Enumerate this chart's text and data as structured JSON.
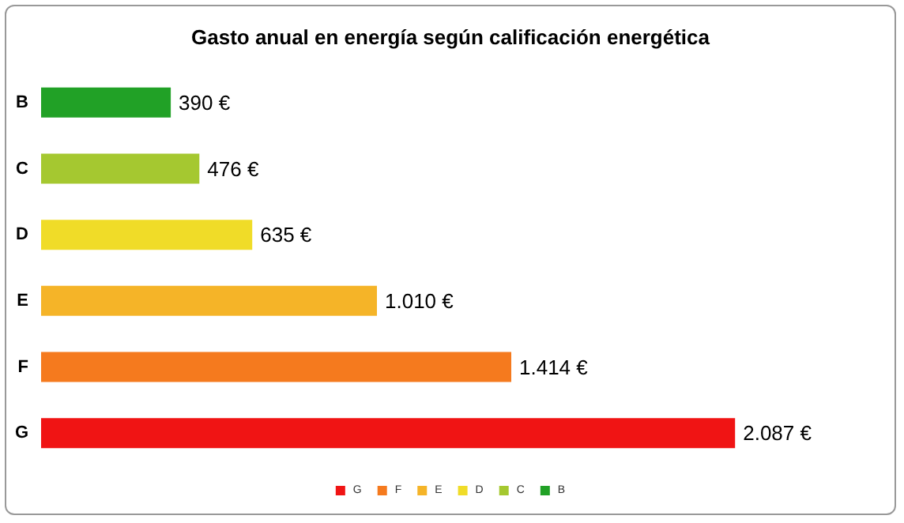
{
  "chart_data": {
    "type": "bar",
    "orientation": "horizontal",
    "stacked": true,
    "title": "Gasto anual en energía según calificación energética",
    "categories": [
      "B",
      "C",
      "D",
      "E",
      "F",
      "G"
    ],
    "legend": "bottom",
    "series": [
      {
        "name": "G",
        "color": "#f01414",
        "values": [
          null,
          null,
          null,
          null,
          null,
          2087
        ],
        "value_labels": [
          null,
          null,
          null,
          null,
          null,
          "2.087 €"
        ]
      },
      {
        "name": "F",
        "color": "#f57a1e",
        "values": [
          null,
          null,
          null,
          null,
          1414,
          null
        ],
        "value_labels": [
          null,
          null,
          null,
          null,
          "1.414 €",
          null
        ]
      },
      {
        "name": "E",
        "color": "#f5b428",
        "values": [
          null,
          null,
          null,
          1010,
          null,
          null
        ],
        "value_labels": [
          null,
          null,
          null,
          "1.010 €",
          null,
          null
        ]
      },
      {
        "name": "D",
        "color": "#f0dc28",
        "values": [
          null,
          null,
          635,
          null,
          null,
          null
        ],
        "value_labels": [
          null,
          null,
          "635 €",
          null,
          null,
          null
        ]
      },
      {
        "name": "C",
        "color": "#a5c830",
        "values": [
          null,
          476,
          null,
          null,
          null,
          null
        ],
        "value_labels": [
          null,
          "476 €",
          null,
          null,
          null,
          null
        ]
      },
      {
        "name": "B",
        "color": "#21a126",
        "values": [
          390,
          null,
          null,
          null,
          null,
          null
        ],
        "value_labels": [
          "390 €",
          null,
          null,
          null,
          null,
          null
        ]
      }
    ]
  }
}
